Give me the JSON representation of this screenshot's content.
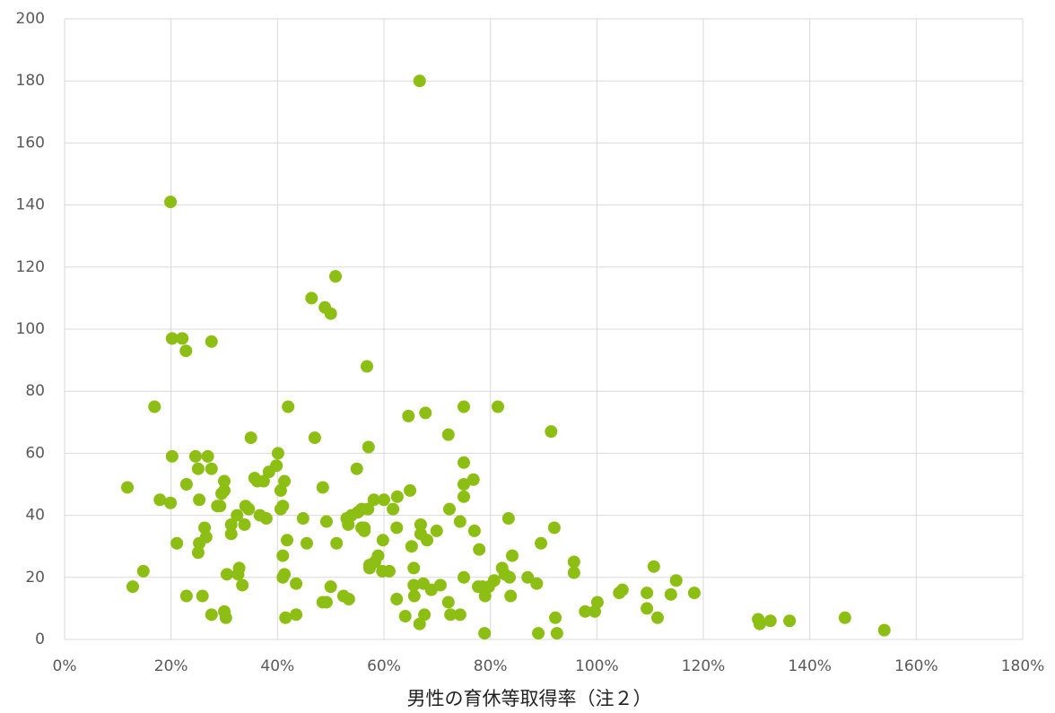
{
  "chart_data": {
    "type": "scatter",
    "x_label": "男性の育休等取得率（注２）",
    "color": "#8dbe13",
    "grid": true,
    "xlim": [
      0,
      180
    ],
    "ylim": [
      0,
      200
    ],
    "xticks": [
      {
        "value": 0,
        "label": "0%"
      },
      {
        "value": 20,
        "label": "20%"
      },
      {
        "value": 40,
        "label": "40%"
      },
      {
        "value": 60,
        "label": "60%"
      },
      {
        "value": 80,
        "label": "80%"
      },
      {
        "value": 100,
        "label": "100%"
      },
      {
        "value": 120,
        "label": "120%"
      },
      {
        "value": 140,
        "label": "140%"
      },
      {
        "value": 160,
        "label": "160%"
      },
      {
        "value": 180,
        "label": "180%"
      }
    ],
    "yticks": [
      0,
      20,
      40,
      60,
      80,
      100,
      120,
      140,
      160,
      180,
      200
    ],
    "x": [
      11.8,
      12.8,
      14.8,
      16.9,
      17.9,
      19.9,
      20.2,
      22.1,
      22.8,
      20.2,
      19.9,
      21.1,
      22.9,
      22.9,
      24.6,
      25.1,
      25.3,
      25.3,
      25.1,
      25.9,
      26.3,
      26.6,
      26.9,
      27.6,
      27.6,
      27.6,
      28.7,
      29.2,
      29.5,
      30,
      30,
      30,
      30.3,
      30.5,
      31.3,
      31.3,
      32.4,
      32.6,
      32.8,
      33.4,
      33.8,
      34,
      34.6,
      35,
      35.7,
      36.2,
      36.7,
      37.4,
      37.9,
      38.4,
      39.8,
      40.1,
      40.6,
      40.6,
      41,
      41.3,
      41,
      41,
      41.3,
      41.5,
      41.8,
      42,
      43.5,
      43.5,
      44.8,
      45.5,
      46.4,
      47,
      48.5,
      48.5,
      48.9,
      49.2,
      49.2,
      50,
      50,
      50.9,
      51.1,
      52.4,
      53,
      53.3,
      53.4,
      53.9,
      54.9,
      55.1,
      55.8,
      55.8,
      56.3,
      56.3,
      56.8,
      57,
      57.1,
      57.3,
      57.3,
      58.1,
      58.3,
      58.9,
      59.7,
      59.8,
      60,
      61,
      61.7,
      62.4,
      62.4,
      62.5,
      64,
      64.6,
      64.9,
      65.2,
      65.6,
      65.6,
      65.7,
      66.7,
      66.7,
      66.9,
      66.9,
      67.6,
      67.8,
      67.4,
      68.1,
      68.9,
      69.9,
      70.6,
      72.1,
      72.3,
      72.1,
      72.5,
      74.3,
      74.3,
      75,
      75,
      75,
      75,
      75,
      76.8,
      77,
      77.7,
      77.9,
      78.5,
      79,
      78.9,
      79.7,
      80.7,
      81.4,
      82.2,
      82.7,
      83.4,
      83.6,
      83.8,
      84.1,
      87,
      88.7,
      89,
      89.5,
      91.4,
      92,
      92.2,
      92.5,
      95.7,
      95.7,
      97.8,
      99.6,
      100.1,
      104.2,
      104.8,
      109.4,
      109.4,
      110.7,
      111.4,
      113.9,
      114.9,
      118.3,
      130.3,
      130.6,
      132.6,
      136.2,
      146.6,
      154
    ],
    "values": [
      49,
      17,
      22,
      75,
      45,
      141,
      97,
      97,
      93,
      59,
      44,
      31,
      50,
      14,
      59,
      55,
      45,
      31,
      28,
      14,
      36,
      33,
      59,
      96,
      55,
      8,
      43,
      43,
      47,
      51,
      48,
      9,
      7,
      21,
      37,
      34,
      40,
      21,
      23,
      17.5,
      37,
      43,
      42,
      65,
      52,
      51,
      40,
      51,
      39,
      54,
      56,
      60,
      48,
      42,
      43,
      51,
      27,
      20,
      21,
      7,
      32,
      75,
      18,
      8,
      39,
      31,
      110,
      65,
      49,
      12,
      107,
      38,
      12,
      105,
      17,
      117,
      31,
      14,
      39,
      37,
      13,
      40,
      55,
      41,
      42,
      36,
      35,
      36,
      88,
      42,
      62,
      24,
      23,
      45,
      25,
      27,
      22,
      32,
      45,
      22,
      42,
      36,
      13,
      46,
      7.5,
      72,
      48,
      30,
      17.5,
      23,
      14,
      180,
      5,
      37,
      34,
      8,
      73,
      18,
      32,
      16,
      35,
      17.5,
      66,
      42,
      12,
      8,
      8,
      38,
      75,
      57,
      50,
      46,
      20,
      51.5,
      35,
      17,
      29,
      17,
      14,
      2,
      17,
      19,
      75,
      23,
      21,
      39,
      20,
      14,
      27,
      20,
      18,
      2,
      31,
      67,
      36,
      7,
      2,
      25,
      21.5,
      9,
      9,
      12,
      15,
      16,
      15,
      10,
      23.5,
      7,
      14.5,
      19,
      15,
      6.5,
      5,
      6,
      6,
      7,
      3
    ]
  }
}
